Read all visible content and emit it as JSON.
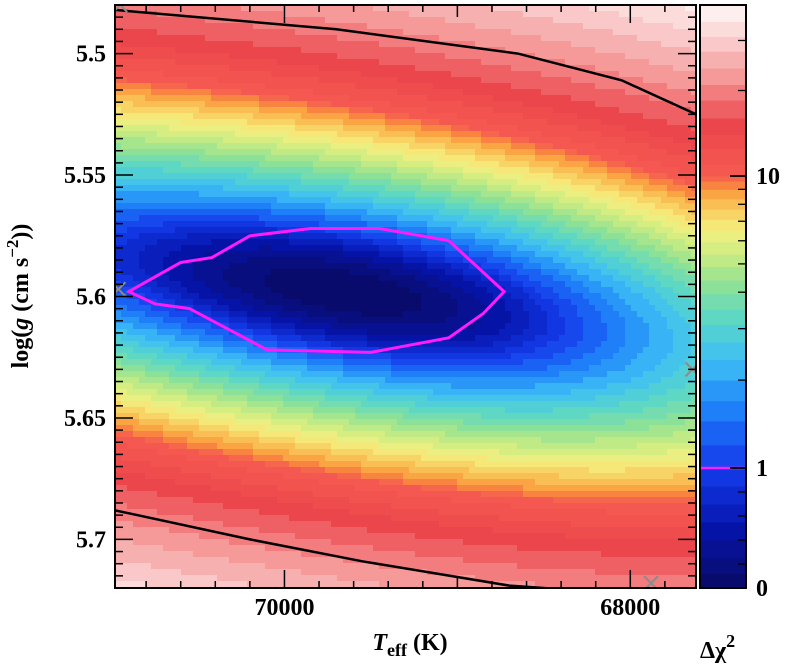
{
  "chart_data": {
    "type": "heatmap",
    "title": "",
    "xlabel": {
      "main": "T",
      "sub": "eff",
      "unit": " (K)"
    },
    "ylabel": {
      "pre": "log(",
      "var": "g",
      "unit": " (cm s",
      "sup": "−2",
      "post": "))"
    },
    "colorbar_label": {
      "main": "Δχ",
      "sup": "2"
    },
    "xlim": [
      70980,
      67620
    ],
    "ylim": [
      5.48,
      5.72
    ],
    "x_ticks": [
      {
        "value": 70000,
        "label": "70000"
      },
      {
        "value": 68000,
        "label": "68000"
      }
    ],
    "y_ticks": [
      {
        "value": 5.5,
        "label": "5.5"
      },
      {
        "value": 5.55,
        "label": "5.55"
      },
      {
        "value": 5.6,
        "label": "5.6"
      },
      {
        "value": 5.65,
        "label": "5.65"
      },
      {
        "value": 5.7,
        "label": "5.7"
      }
    ],
    "colorbar_ticks": [
      {
        "value": 0,
        "label": "0"
      },
      {
        "value": 1,
        "label": "1"
      },
      {
        "value": 10,
        "label": "10"
      }
    ],
    "colorbar_range": [
      0,
      40
    ],
    "minimum": {
      "teff": 69650,
      "logg": 5.598
    },
    "one_sigma_contour": [
      [
        70900,
        5.598
      ],
      [
        70600,
        5.586
      ],
      [
        70420,
        5.584
      ],
      [
        70200,
        5.575
      ],
      [
        69850,
        5.572
      ],
      [
        69450,
        5.572
      ],
      [
        69050,
        5.577
      ],
      [
        68730,
        5.598
      ],
      [
        68850,
        5.607
      ],
      [
        69050,
        5.617
      ],
      [
        69500,
        5.623
      ],
      [
        70100,
        5.622
      ],
      [
        70550,
        5.605
      ],
      [
        70750,
        5.603
      ],
      [
        70900,
        5.598
      ]
    ],
    "outer_contour_top": [
      [
        70980,
        5.482
      ],
      [
        69700,
        5.49
      ],
      [
        68650,
        5.5
      ],
      [
        68050,
        5.511
      ],
      [
        67620,
        5.525
      ]
    ],
    "outer_contour_bottom": [
      [
        70980,
        5.688
      ],
      [
        70200,
        5.7
      ],
      [
        69550,
        5.709
      ],
      [
        68700,
        5.719
      ],
      [
        68300,
        5.721
      ]
    ],
    "grid_markers": [
      [
        70950,
        5.48
      ],
      [
        70960,
        5.597
      ],
      [
        67640,
        5.63
      ],
      [
        67880,
        5.718
      ]
    ],
    "colors": {
      "one_sigma": "#ff1cff",
      "outer_contour": "#000000",
      "marker": "#8c8c8c"
    }
  }
}
